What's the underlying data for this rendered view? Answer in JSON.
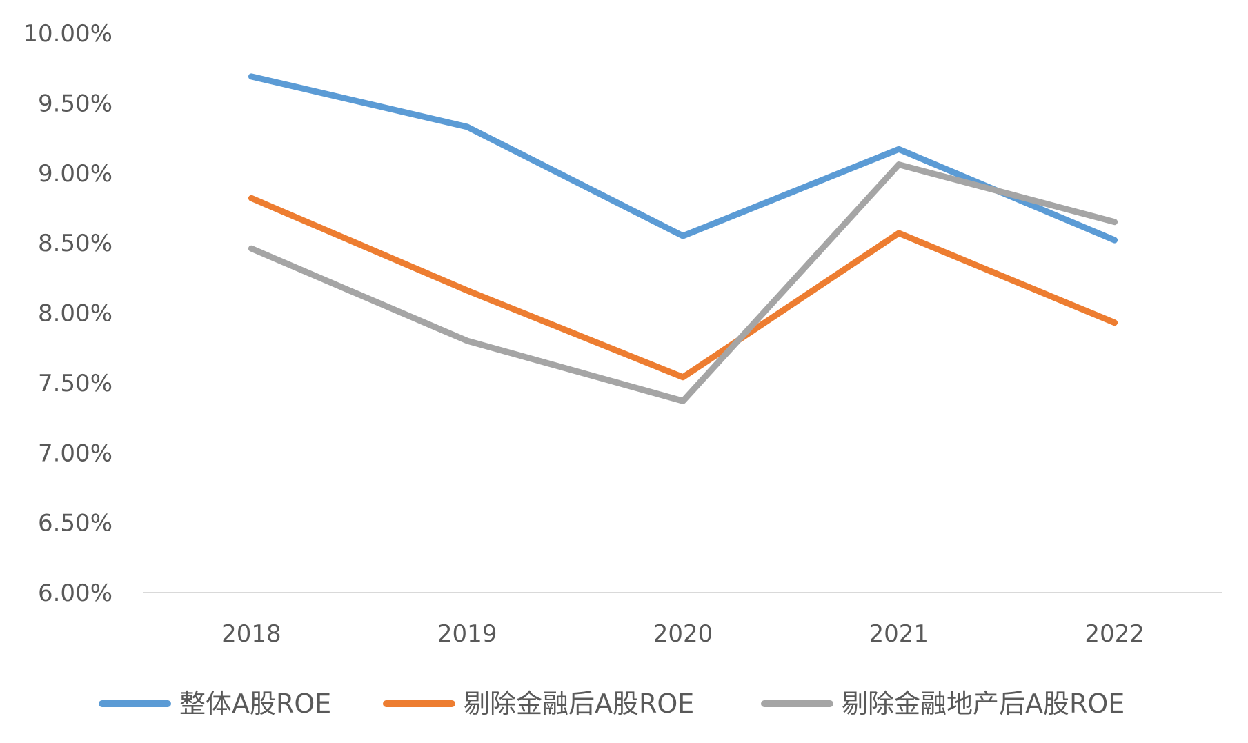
{
  "chart_data": {
    "type": "line",
    "categories": [
      "2018",
      "2019",
      "2020",
      "2021",
      "2022"
    ],
    "ylim": [
      6.0,
      10.0
    ],
    "yticks": [
      6.0,
      6.5,
      7.0,
      7.5,
      8.0,
      8.5,
      9.0,
      9.5,
      10.0
    ],
    "ytick_labels": [
      "6.00%",
      "6.50%",
      "7.00%",
      "7.50%",
      "8.00%",
      "8.50%",
      "9.00%",
      "9.50%",
      "10.00%"
    ],
    "grid": false,
    "legend_position": "bottom",
    "series": [
      {
        "name": "整体A股ROE",
        "color": "#5B9BD5",
        "values": [
          9.69,
          9.33,
          8.55,
          9.17,
          8.52
        ]
      },
      {
        "name": "剔除金融后A股ROE",
        "color": "#ED7D31",
        "values": [
          8.82,
          8.16,
          7.54,
          8.57,
          7.93
        ]
      },
      {
        "name": "剔除金融地产后A股ROE",
        "color": "#A5A5A5",
        "values": [
          8.46,
          7.8,
          7.37,
          9.06,
          8.65
        ]
      }
    ]
  }
}
